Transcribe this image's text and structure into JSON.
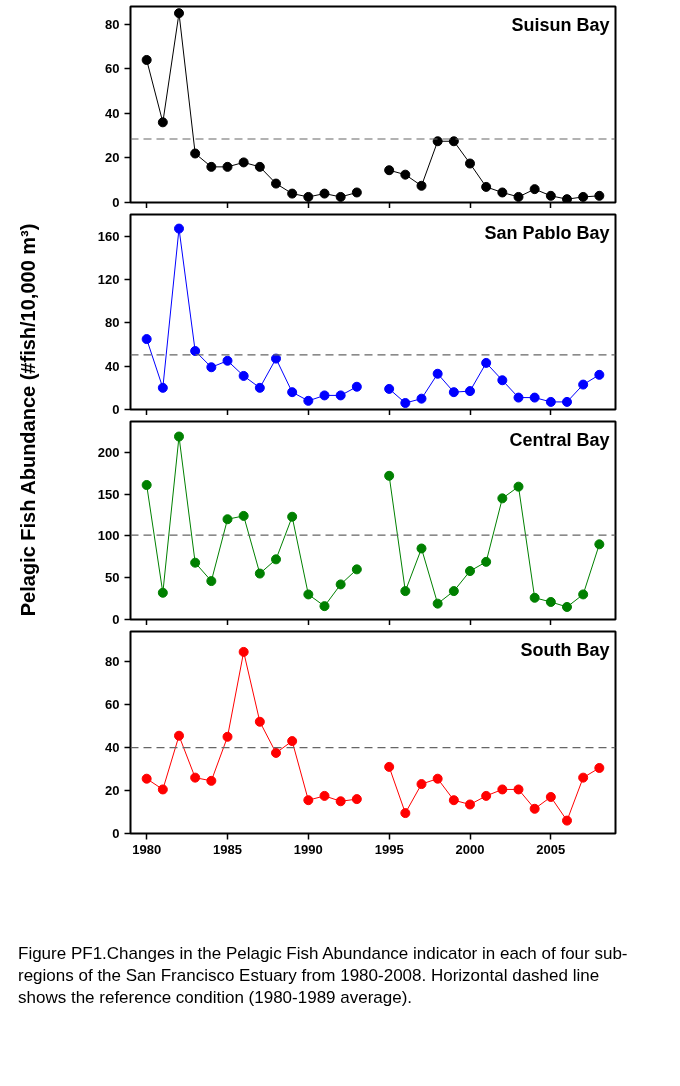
{
  "chart_data": [
    {
      "type": "line",
      "title": "Suisun Bay",
      "ylabel": "Pelagic Fish Abundance (#fish/10,000 m³)",
      "x": [
        1980,
        1981,
        1982,
        1983,
        1984,
        1985,
        1986,
        1987,
        1988,
        1989,
        1990,
        1991,
        1992,
        1993,
        1994,
        1995,
        1996,
        1997,
        1998,
        1999,
        2000,
        2001,
        2002,
        2003,
        2004,
        2005,
        2006,
        2007,
        2008
      ],
      "series": [
        {
          "color": "#000000",
          "values": [
            64,
            36,
            85,
            22,
            16,
            16,
            18,
            16,
            8.5,
            4,
            2.5,
            4,
            2.5,
            4.5,
            null,
            14.5,
            12.5,
            7.5,
            27.5,
            27.5,
            17.5,
            7,
            4.5,
            2.5,
            6,
            3,
            1.5,
            2.5,
            3
          ]
        }
      ],
      "xlim": [
        1979,
        2009
      ],
      "xticks": [
        1980,
        1985,
        1990,
        1995,
        2000,
        2005
      ],
      "ylim": [
        0,
        88
      ],
      "yticks": [
        0,
        20,
        40,
        60,
        80
      ],
      "tick_labels": "y",
      "marker": "circle",
      "grid": false,
      "ref_lines": [
        {
          "axis": "y",
          "value": 28.5,
          "color": "#666666",
          "line_style": "dashed"
        }
      ]
    },
    {
      "type": "line",
      "title": "San Pablo Bay",
      "x": [
        1980,
        1981,
        1982,
        1983,
        1984,
        1985,
        1986,
        1987,
        1988,
        1989,
        1990,
        1991,
        1992,
        1993,
        1994,
        1995,
        1996,
        1997,
        1998,
        1999,
        2000,
        2001,
        2002,
        2003,
        2004,
        2005,
        2006,
        2007,
        2008
      ],
      "series": [
        {
          "color": "#0000ff",
          "values": [
            65,
            20,
            167,
            54,
            39,
            45,
            31,
            20,
            47,
            16,
            8,
            13,
            13,
            21,
            null,
            19,
            6,
            10,
            33,
            16,
            17,
            43,
            27,
            11,
            11,
            7,
            7,
            23,
            32
          ]
        }
      ],
      "xlim": [
        1979,
        2009
      ],
      "xticks": [
        1980,
        1985,
        1990,
        1995,
        2000,
        2005
      ],
      "ylim": [
        0,
        180
      ],
      "yticks": [
        0,
        40,
        80,
        120,
        160
      ],
      "tick_labels": "y",
      "marker": "circle",
      "grid": false,
      "ref_lines": [
        {
          "axis": "y",
          "value": 50.5,
          "color": "#666666",
          "line_style": "dashed"
        }
      ]
    },
    {
      "type": "line",
      "title": "Central Bay",
      "x": [
        1980,
        1981,
        1982,
        1983,
        1984,
        1985,
        1986,
        1987,
        1988,
        1989,
        1990,
        1991,
        1992,
        1993,
        1994,
        1995,
        1996,
        1997,
        1998,
        1999,
        2000,
        2001,
        2002,
        2003,
        2004,
        2005,
        2006,
        2007,
        2008
      ],
      "series": [
        {
          "color": "#008000",
          "values": [
            161,
            32,
            219,
            68,
            46,
            120,
            124,
            55,
            72,
            123,
            30,
            16,
            42,
            60,
            null,
            172,
            34,
            85,
            19,
            34,
            58,
            69,
            145,
            159,
            26,
            21,
            15,
            30,
            90
          ]
        }
      ],
      "xlim": [
        1979,
        2009
      ],
      "xticks": [
        1980,
        1985,
        1990,
        1995,
        2000,
        2005
      ],
      "ylim": [
        0,
        237
      ],
      "yticks": [
        0,
        50,
        100,
        150,
        200
      ],
      "tick_labels": "y",
      "marker": "circle",
      "grid": false,
      "ref_lines": [
        {
          "axis": "y",
          "value": 101,
          "color": "#666666",
          "line_style": "dashed"
        }
      ]
    },
    {
      "type": "line",
      "title": "South Bay",
      "x": [
        1980,
        1981,
        1982,
        1983,
        1984,
        1985,
        1986,
        1987,
        1988,
        1989,
        1990,
        1991,
        1992,
        1993,
        1994,
        1995,
        1996,
        1997,
        1998,
        1999,
        2000,
        2001,
        2002,
        2003,
        2004,
        2005,
        2006,
        2007,
        2008
      ],
      "series": [
        {
          "color": "#ff0000",
          "values": [
            25.5,
            20.5,
            45.5,
            26,
            24.5,
            45,
            84.5,
            52,
            37.5,
            43,
            15.5,
            17.5,
            15,
            16,
            null,
            31,
            9.5,
            23,
            25.5,
            15.5,
            13.5,
            17.5,
            20.5,
            20.5,
            11.5,
            17,
            6,
            26,
            30.5
          ]
        }
      ],
      "xlim": [
        1979,
        2009
      ],
      "xticks": [
        1980,
        1985,
        1990,
        1995,
        2000,
        2005
      ],
      "ylim": [
        0,
        94
      ],
      "yticks": [
        0,
        20,
        40,
        60,
        80
      ],
      "marker": "circle",
      "grid": false,
      "ref_lines": [
        {
          "axis": "y",
          "value": 40,
          "color": "#666666",
          "line_style": "dashed"
        }
      ],
      "annotations": [
        "Figure PF1.Changes in the Pelagic Fish Abundance indicator in each of four sub-regions of the San Francisco Estuary from 1980-2008. Horizontal dashed line shows the reference condition (1980-1989 average)."
      ]
    }
  ]
}
